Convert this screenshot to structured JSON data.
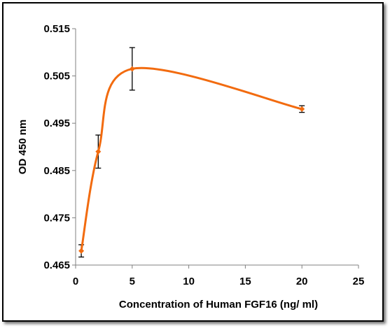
{
  "chart_data": {
    "type": "line",
    "title": "",
    "xlabel": "Concentration of Human FGF16 (ng/ ml)",
    "ylabel": "OD 450 nm",
    "xlim": [
      0,
      25
    ],
    "ylim": [
      0.465,
      0.515
    ],
    "x_ticks": [
      0,
      5,
      10,
      15,
      20,
      25
    ],
    "x_tick_labels": [
      "0",
      "5",
      "10",
      "15",
      "20",
      "25"
    ],
    "y_ticks": [
      0.465,
      0.475,
      0.485,
      0.495,
      0.505,
      0.515
    ],
    "y_tick_labels": [
      "0.465",
      "0.475",
      "0.485",
      "0.495",
      "0.505",
      "0.515"
    ],
    "grid": false,
    "legend": "none",
    "line_color": "#F26B0F",
    "series": [
      {
        "x": [
          0.5,
          2,
          5,
          20
        ],
        "y": [
          0.468,
          0.489,
          0.5065,
          0.498
        ],
        "error": [
          0.0013,
          0.0035,
          0.0045,
          0.0007
        ]
      }
    ]
  }
}
